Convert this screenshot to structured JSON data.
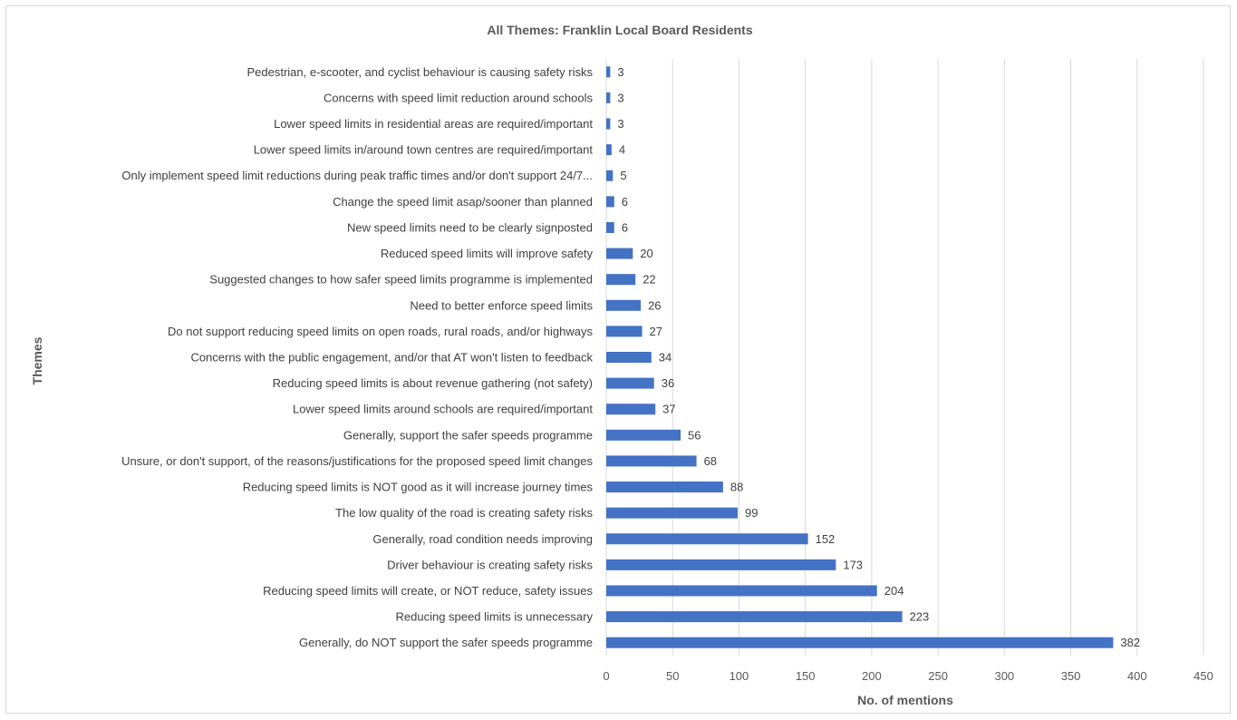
{
  "chart_data": {
    "type": "bar",
    "orientation": "horizontal",
    "title": "All Themes: Franklin Local Board Residents",
    "xlabel": "No. of mentions",
    "ylabel": "Themes",
    "xlim": [
      0,
      450
    ],
    "xticks": [
      0,
      50,
      100,
      150,
      200,
      250,
      300,
      350,
      400,
      450
    ],
    "grid": true,
    "bar_color": "#4472c4",
    "categories": [
      "Pedestrian, e-scooter, and cyclist behaviour is causing safety risks",
      "Concerns with speed limit reduction around schools",
      "Lower speed limits in residential areas are required/important",
      "Lower speed limits in/around town centres are required/important",
      "Only implement speed limit reductions during peak traffic times and/or don't support 24/7...",
      "Change the speed limit asap/sooner than planned",
      "New speed limits need to be clearly signposted",
      "Reduced speed limits will improve safety",
      "Suggested changes to how safer speed limits programme is implemented",
      "Need to better enforce speed limits",
      "Do not support reducing speed limits on open roads, rural roads, and/or highways",
      "Concerns with the public engagement, and/or that AT won't listen to feedback",
      "Reducing speed limits is about revenue gathering (not safety)",
      "Lower speed limits around schools are required/important",
      "Generally, support the safer speeds programme",
      "Unsure, or don't support, of the reasons/justifications for the proposed speed limit changes",
      "Reducing speed limits is NOT good as it will increase journey times",
      "The low quality of the road is creating safety risks",
      "Generally, road condition needs improving",
      "Driver behaviour is creating safety risks",
      "Reducing speed limits will create, or NOT reduce, safety issues",
      "Reducing speed limits is unnecessary",
      "Generally, do NOT support the safer speeds programme"
    ],
    "values": [
      3,
      3,
      3,
      4,
      5,
      6,
      6,
      20,
      22,
      26,
      27,
      34,
      36,
      37,
      56,
      68,
      88,
      99,
      152,
      173,
      204,
      223,
      382
    ]
  }
}
